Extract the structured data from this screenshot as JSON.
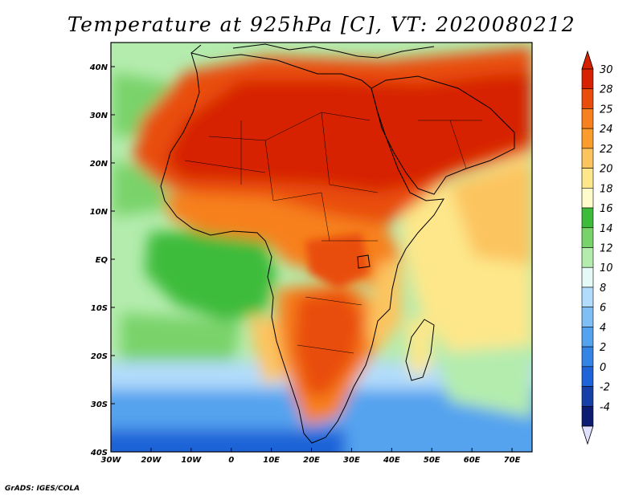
{
  "title": "Temperature at 925hPa [C], VT: 2020080212",
  "credit": "GrADS: IGES/COLA",
  "map": {
    "projection": "latlon",
    "lon_range": [
      -30,
      75
    ],
    "lat_range": [
      -40,
      45
    ],
    "lat_ticks": [
      {
        "value": 40,
        "label": "40N"
      },
      {
        "value": 30,
        "label": "30N"
      },
      {
        "value": 20,
        "label": "20N"
      },
      {
        "value": 10,
        "label": "10N"
      },
      {
        "value": 0,
        "label": "EQ"
      },
      {
        "value": -10,
        "label": "10S"
      },
      {
        "value": -20,
        "label": "20S"
      },
      {
        "value": -30,
        "label": "30S"
      },
      {
        "value": -40,
        "label": "40S"
      }
    ],
    "lon_ticks": [
      {
        "value": -30,
        "label": "30W"
      },
      {
        "value": -20,
        "label": "20W"
      },
      {
        "value": -10,
        "label": "10W"
      },
      {
        "value": 0,
        "label": "0"
      },
      {
        "value": 10,
        "label": "10E"
      },
      {
        "value": 20,
        "label": "20E"
      },
      {
        "value": 30,
        "label": "30E"
      },
      {
        "value": 40,
        "label": "40E"
      },
      {
        "value": 50,
        "label": "50E"
      },
      {
        "value": 60,
        "label": "60E"
      },
      {
        "value": 70,
        "label": "70E"
      }
    ]
  },
  "colorbar": {
    "levels": [
      {
        "label": "30",
        "color": "#d62200"
      },
      {
        "label": "28",
        "color": "#e94d0c"
      },
      {
        "label": "25",
        "color": "#f7801f"
      },
      {
        "label": "24",
        "color": "#fb9c2c"
      },
      {
        "label": "22",
        "color": "#fcc45e"
      },
      {
        "label": "20",
        "color": "#fde78a"
      },
      {
        "label": "18",
        "color": "#fffccc"
      },
      {
        "label": "16",
        "color": "#3dbb3a"
      },
      {
        "label": "14",
        "color": "#79d36b"
      },
      {
        "label": "12",
        "color": "#b4ecae"
      },
      {
        "label": "10",
        "color": "#e5f9f7"
      },
      {
        "label": "8",
        "color": "#b2dcfb"
      },
      {
        "label": "6",
        "color": "#80bff5"
      },
      {
        "label": "4",
        "color": "#54a3ef"
      },
      {
        "label": "2",
        "color": "#3484e6"
      },
      {
        "label": "0",
        "color": "#1e64d8"
      },
      {
        "label": "-2",
        "color": "#163fa8"
      },
      {
        "label": "-4",
        "color": "#0c1c72"
      }
    ],
    "over_color": "#d62200",
    "under_color": "#e0e0ff"
  },
  "field_colors": {
    "ocean_far_south": "#1e64d8",
    "ocean_south": "#54a3ef",
    "ocean_cool": "#b2dcfb",
    "ocean_mild": "#b4ecae",
    "ocean_green": "#3dbb3a",
    "ocean_lightgreen": "#79d36b",
    "ocean_warm": "#fde78a",
    "ocean_orange": "#fcc45e",
    "land_hot": "#d62200",
    "land_warm": "#e94d0c",
    "land_mid": "#f7801f"
  }
}
